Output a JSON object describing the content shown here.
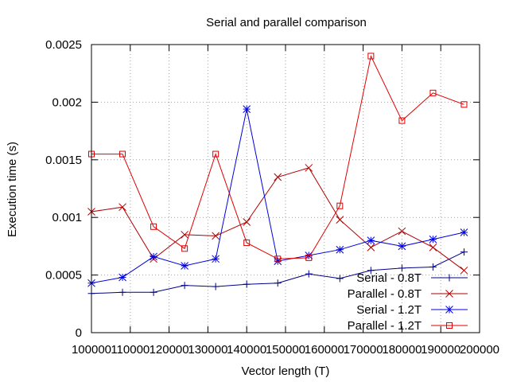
{
  "chart_data": {
    "type": "line",
    "title": "Serial and parallel comparison",
    "xlabel": "Vector length (T)",
    "ylabel": "Execution time (s)",
    "xlim": [
      100000,
      200000
    ],
    "ylim": [
      0,
      0.0025
    ],
    "xticks": [
      "100000",
      "110000",
      "120000",
      "130000",
      "140000",
      "150000",
      "160000",
      "170000",
      "180000",
      "190000",
      "200000"
    ],
    "xtick_values": [
      100000,
      110000,
      120000,
      130000,
      140000,
      150000,
      160000,
      170000,
      180000,
      190000,
      200000
    ],
    "yticks": [
      "0",
      "0.0005",
      "0.001",
      "0.0015",
      "0.002",
      "0.0025"
    ],
    "ytick_values": [
      0,
      0.0005,
      0.001,
      0.0015,
      0.002,
      0.0025
    ],
    "grid": true,
    "legend_position": "bottom-right",
    "x": [
      100000,
      108000,
      116000,
      124000,
      132000,
      140000,
      148000,
      156000,
      164000,
      172000,
      180000,
      188000,
      196000
    ],
    "series": [
      {
        "name": "Serial - 0.8T",
        "color": "#00008b",
        "marker": "plus",
        "values": [
          0.00034,
          0.00035,
          0.00035,
          0.00041,
          0.0004,
          0.00042,
          0.00043,
          0.00051,
          0.00047,
          0.00054,
          0.00056,
          0.00057,
          0.0007
        ]
      },
      {
        "name": "Parallel - 0.8T",
        "color": "#b00000",
        "marker": "cross",
        "values": [
          0.00105,
          0.00109,
          0.00064,
          0.00085,
          0.00084,
          0.00096,
          0.00135,
          0.00143,
          0.00098,
          0.00074,
          0.00088,
          0.00074,
          0.00054
        ]
      },
      {
        "name": "Serial - 1.2T",
        "color": "#0000e0",
        "marker": "star",
        "values": [
          0.00043,
          0.00048,
          0.00066,
          0.00058,
          0.00064,
          0.00194,
          0.00062,
          0.00067,
          0.00072,
          0.0008,
          0.00075,
          0.00081,
          0.00087
        ]
      },
      {
        "name": "Parallel - 1.2T",
        "color": "#e00000",
        "marker": "square",
        "values": [
          0.00155,
          0.00155,
          0.00092,
          0.00073,
          0.00155,
          0.00078,
          0.00064,
          0.00065,
          0.0011,
          0.0024,
          0.00184,
          0.00208,
          0.00198
        ]
      }
    ]
  }
}
